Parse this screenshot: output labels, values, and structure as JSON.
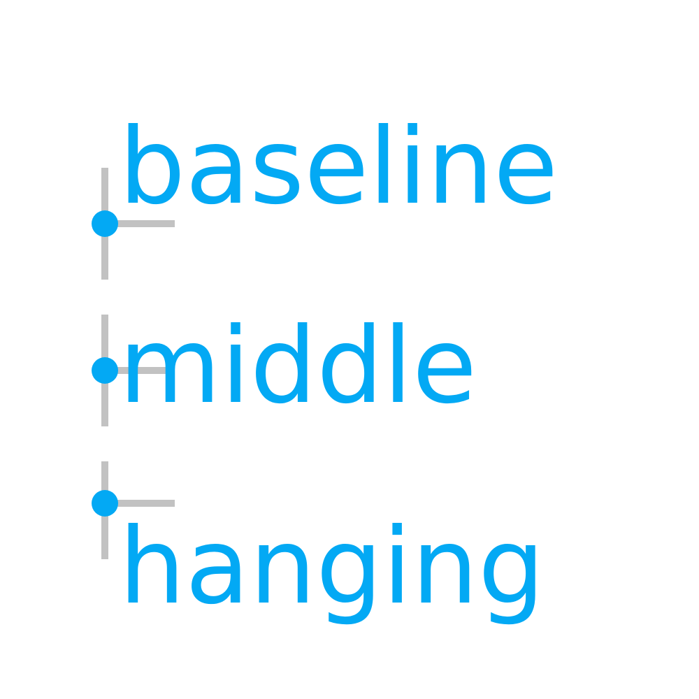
{
  "colors": {
    "text": "#03a9f4",
    "anchor": "#03a9f4",
    "guide": "#c2c2c2",
    "background": "#ffffff"
  },
  "rows": [
    {
      "label": "baseline",
      "baseline": "alphabetic"
    },
    {
      "label": "middle",
      "baseline": "middle"
    },
    {
      "label": "hanging",
      "baseline": "hanging"
    }
  ]
}
